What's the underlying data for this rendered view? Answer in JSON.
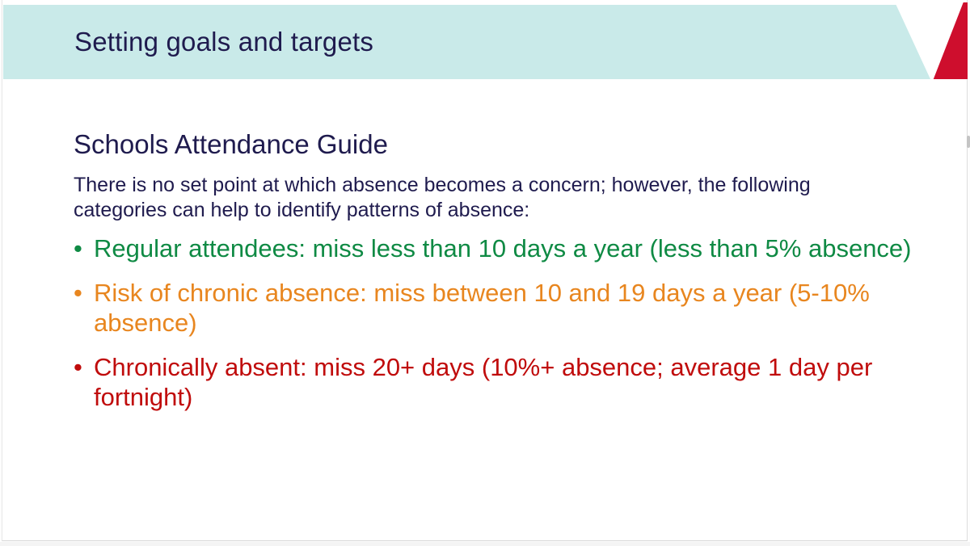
{
  "header": {
    "title": "Setting goals and targets",
    "band_color": "#c9eae9",
    "corner_triangle_color": "#ce0e2d"
  },
  "content": {
    "heading": "Schools Attendance Guide",
    "intro": "There is no set point at which absence becomes a concern; however, the following categories can help to identify patterns of absence:",
    "bullets": [
      {
        "id": "regular-attendees",
        "text": "Regular attendees: miss less than 10 days a year (less than 5% absence)",
        "color": "#0f8a44"
      },
      {
        "id": "risk-of-chronic-absence",
        "text": "Risk of chronic absence: miss between 10 and 19 days a year (5-10% absence)",
        "color": "#e8861f"
      },
      {
        "id": "chronically-absent",
        "text": "Chronically absent: miss 20+ days (10%+ absence; average 1 day per fortnight)",
        "color": "#c00c0c"
      }
    ]
  },
  "colors": {
    "body_text": "#1f1b4e"
  }
}
